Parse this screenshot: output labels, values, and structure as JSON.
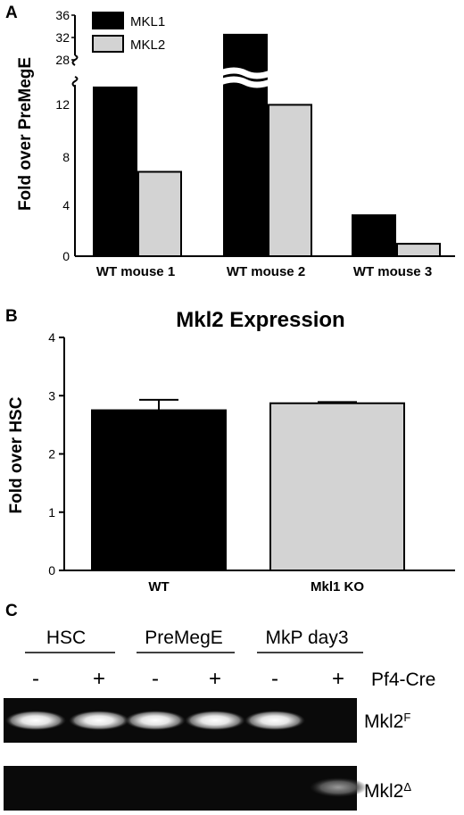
{
  "panels": {
    "a": {
      "letter": "A",
      "ylabel": "Fold over PreMegE",
      "legend": [
        {
          "label": "MKL1",
          "color": "#000000"
        },
        {
          "label": "MKL2",
          "color": "#d3d3d3"
        }
      ],
      "upper_ticks": [
        "36",
        "32",
        "28"
      ],
      "lower_ticks": [
        "0",
        "4",
        "8",
        "12"
      ],
      "categories": [
        "WT mouse 1",
        "WT mouse 2",
        "WT mouse 3"
      ]
    },
    "b": {
      "letter": "B",
      "title": "Mkl2 Expression",
      "ylabel": "Fold over HSC",
      "ticks": [
        "0",
        "1",
        "2",
        "3",
        "4"
      ],
      "categories": [
        "WT",
        "Mkl1 KO"
      ]
    },
    "c": {
      "letter": "C",
      "groups": [
        "HSC",
        "PreMegE",
        "MkP day3"
      ],
      "signs": [
        "-",
        "+",
        "-",
        "+",
        "-",
        "+"
      ],
      "cre_label": "Pf4-Cre",
      "band_labels": [
        {
          "base": "Mkl2",
          "sup": "F"
        },
        {
          "base": "Mkl2",
          "sup": "Δ"
        }
      ],
      "gel": {
        "floxed_band_present": [
          true,
          true,
          true,
          true,
          true,
          false
        ],
        "deleted_band_present": [
          false,
          false,
          false,
          false,
          false,
          true
        ]
      }
    }
  },
  "chart_data": [
    {
      "panel": "A",
      "type": "bar",
      "title": "",
      "ylabel": "Fold over PreMegE",
      "xlabel": "",
      "categories": [
        "WT mouse 1",
        "WT mouse 2",
        "WT mouse 3"
      ],
      "series": [
        {
          "name": "MKL1",
          "color": "#000000",
          "values": [
            13.6,
            32.5,
            3.3
          ]
        },
        {
          "name": "MKL2",
          "color": "#d3d3d3",
          "values": [
            6.8,
            12.2,
            1.0
          ]
        }
      ],
      "ylim": [
        0,
        36
      ],
      "axis_break": [
        14.5,
        28
      ],
      "legend": "top-left"
    },
    {
      "panel": "B",
      "type": "bar",
      "title": "Mkl2 Expression",
      "ylabel": "Fold over HSC",
      "xlabel": "",
      "categories": [
        "WT",
        "Mkl1 KO"
      ],
      "series": [
        {
          "colors": [
            "#000000",
            "#d3d3d3"
          ],
          "values": [
            2.75,
            2.87
          ],
          "error": [
            0.18,
            0.02
          ]
        }
      ],
      "ylim": [
        0,
        4
      ]
    }
  ]
}
